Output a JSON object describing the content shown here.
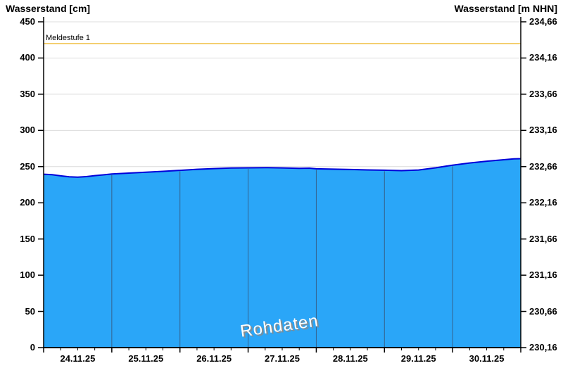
{
  "colors": {
    "background": "#ffffff",
    "area_fill": "#2aa6f8",
    "series_line": "#0000d9",
    "day_divider_in_area": "#35618c",
    "gridline": "#dcdcdc",
    "threshold_line": "#f0c24b",
    "axis": "#000000",
    "text": "#000000",
    "watermark_text": "#ffffff",
    "watermark_shadow": "#8a8a8a"
  },
  "chart_data": {
    "type": "area",
    "title": "",
    "ylabel_left": "Wasserstand [cm]",
    "ylabel_right": "Wasserstand [m NHN]",
    "watermark": "Rohdaten",
    "grid": true,
    "ylim_cm": [
      0,
      450
    ],
    "ylim_m_nhn": [
      230.16,
      234.66
    ],
    "y_ticks_cm": [
      450,
      400,
      350,
      300,
      250,
      200,
      150,
      100,
      50,
      0
    ],
    "y_tick_labels_left": [
      "450",
      "400",
      "350",
      "300",
      "250",
      "200",
      "150",
      "100",
      "50",
      "0"
    ],
    "y_tick_labels_right": [
      "234,66",
      "234,16",
      "233,66",
      "233,16",
      "232,66",
      "232,16",
      "231,66",
      "231,16",
      "230,66",
      "230,16"
    ],
    "x_labels": [
      "24.11.25",
      "25.11.25",
      "26.11.25",
      "27.11.25",
      "28.11.25",
      "29.11.25",
      "30.11.25"
    ],
    "x_span_days": 7,
    "x_minor_ticks_per_day": 4,
    "threshold": {
      "label": "Meldestufe 1",
      "level_cm": 420
    },
    "series": [
      {
        "name": "Wasserstand Rohdaten",
        "unit": "cm",
        "x_unit": "days since 24.11.25 00:00",
        "points": [
          [
            0.0,
            239.5
          ],
          [
            0.125,
            238.8
          ],
          [
            0.25,
            237.2
          ],
          [
            0.375,
            236.0
          ],
          [
            0.5,
            235.5
          ],
          [
            0.625,
            236.2
          ],
          [
            0.75,
            237.5
          ],
          [
            0.875,
            238.6
          ],
          [
            1.0,
            239.8
          ],
          [
            1.25,
            241.0
          ],
          [
            1.5,
            242.3
          ],
          [
            1.75,
            243.5
          ],
          [
            2.0,
            244.8
          ],
          [
            2.25,
            246.3
          ],
          [
            2.5,
            247.3
          ],
          [
            2.75,
            248.0
          ],
          [
            3.0,
            248.3
          ],
          [
            3.25,
            248.6
          ],
          [
            3.5,
            248.2
          ],
          [
            3.75,
            247.6
          ],
          [
            3.9,
            247.8
          ],
          [
            4.0,
            247.0
          ],
          [
            4.25,
            246.5
          ],
          [
            4.5,
            246.0
          ],
          [
            4.75,
            245.4
          ],
          [
            5.0,
            245.0
          ],
          [
            5.25,
            244.4
          ],
          [
            5.5,
            245.3
          ],
          [
            5.75,
            248.3
          ],
          [
            6.0,
            252.0
          ],
          [
            6.25,
            255.0
          ],
          [
            6.5,
            257.5
          ],
          [
            6.75,
            259.5
          ],
          [
            6.9,
            260.7
          ],
          [
            7.0,
            261.0
          ]
        ]
      }
    ]
  }
}
